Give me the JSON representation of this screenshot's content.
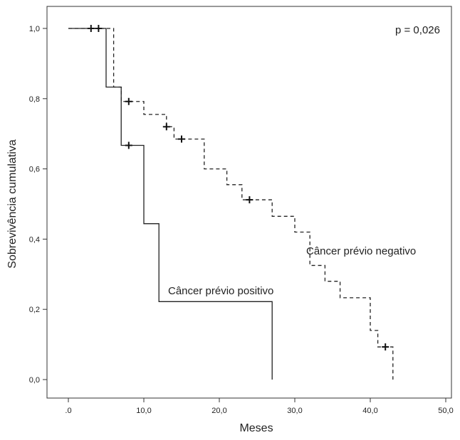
{
  "chart_data": {
    "type": "line",
    "title": "",
    "xlabel": "Meses",
    "ylabel": "Sobrevivência cumulativa",
    "xlim": [
      0,
      50
    ],
    "ylim": [
      0,
      1
    ],
    "x_ticks": [
      ".0",
      "10,0",
      "20,0",
      "30,0",
      "40,0",
      "50,0"
    ],
    "x_tick_values": [
      0,
      10,
      20,
      30,
      40,
      50
    ],
    "y_ticks": [
      "0,0",
      "0,2",
      "0,4",
      "0,6",
      "0,8",
      "1,0"
    ],
    "y_tick_values": [
      0,
      0.2,
      0.4,
      0.6,
      0.8,
      1.0
    ],
    "grid": false,
    "annotation": "p = 0,026",
    "series": [
      {
        "name": "Câncer prévio positivo",
        "style": "solid",
        "color": "#222222",
        "steps": [
          [
            0,
            1.0
          ],
          [
            5,
            0.833
          ],
          [
            7,
            0.667
          ],
          [
            10,
            0.444
          ],
          [
            12,
            0.222
          ],
          [
            27,
            0.0
          ]
        ],
        "end_x": 27,
        "censored": [
          [
            3,
            1.0
          ],
          [
            4,
            1.0
          ],
          [
            8,
            0.667
          ]
        ]
      },
      {
        "name": "Câncer prévio negativo",
        "style": "dashed",
        "color": "#222222",
        "steps": [
          [
            0,
            1.0
          ],
          [
            6,
            0.833
          ],
          [
            7,
            0.792
          ],
          [
            10,
            0.755
          ],
          [
            13,
            0.72
          ],
          [
            14,
            0.685
          ],
          [
            18,
            0.6
          ],
          [
            21,
            0.555
          ],
          [
            23,
            0.512
          ],
          [
            27,
            0.465
          ],
          [
            30,
            0.42
          ],
          [
            32,
            0.325
          ],
          [
            34,
            0.28
          ],
          [
            36,
            0.233
          ],
          [
            40,
            0.14
          ],
          [
            41,
            0.093
          ],
          [
            43,
            0.0
          ]
        ],
        "end_x": 43,
        "censored": [
          [
            8,
            0.792
          ],
          [
            13,
            0.72
          ],
          [
            15,
            0.685
          ],
          [
            24,
            0.512
          ],
          [
            42,
            0.093
          ]
        ]
      }
    ]
  }
}
